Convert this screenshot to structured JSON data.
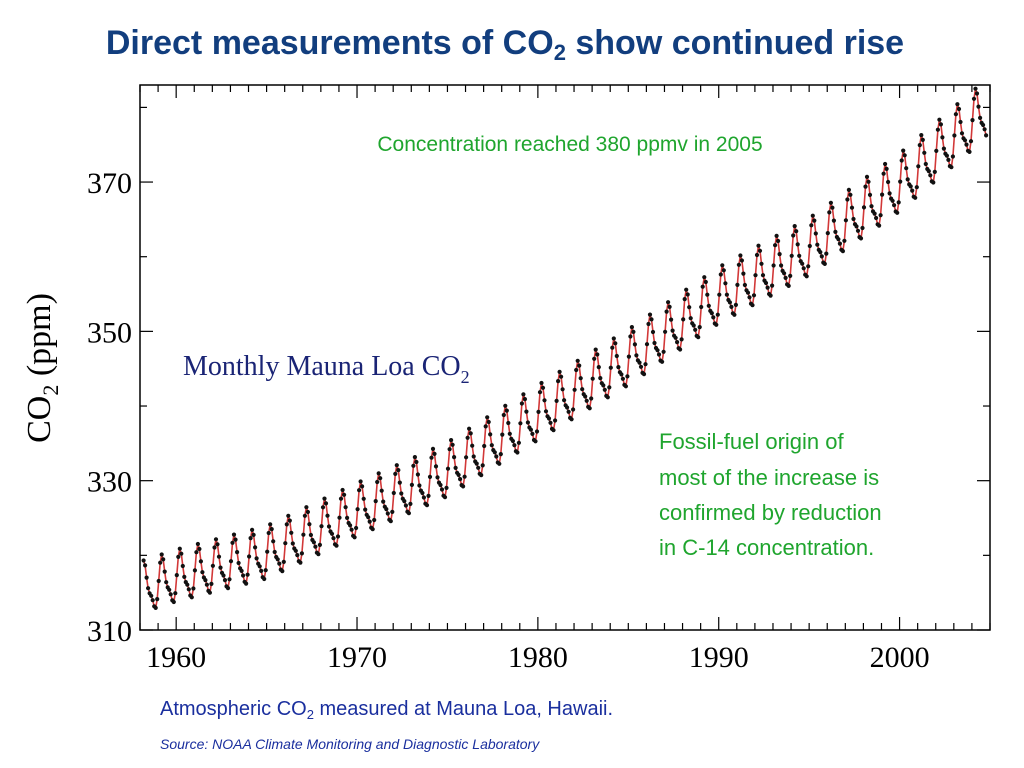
{
  "title": {
    "main": "Direct measurements of CO",
    "sub": "2",
    "rest": " show continued rise"
  },
  "caption": {
    "main": "Atmospheric CO",
    "sub": "2",
    "rest": " measured at Mauna Loa, Hawaii."
  },
  "source": "Source: NOAA Climate Monitoring and Diagnostic Laboratory",
  "colors": {
    "title": "#123e7e",
    "annotation": "#1fa52e",
    "caption": "#1a2f9e",
    "inset_title": "#1a2475",
    "line": "#d23838",
    "points": "#111111"
  },
  "chart_data": {
    "type": "line",
    "inset_title": {
      "main": "Monthly Mauna Loa CO",
      "sub": "2"
    },
    "ylabel": {
      "main": "CO",
      "sub": "2",
      "rest": " (ppm)"
    },
    "xlabel": "",
    "xlim": [
      1958,
      2005
    ],
    "ylim": [
      310,
      383
    ],
    "xticks": [
      1960,
      1970,
      1980,
      1990,
      2000
    ],
    "yticks": [
      310,
      330,
      350,
      370
    ],
    "grid": false,
    "annotations": [
      {
        "id": "reached",
        "text": "Concentration reached 380 ppmv in 2005"
      },
      {
        "id": "fossil",
        "lines": [
          "Fossil-fuel origin of",
          "most of the increase is",
          "confirmed by reduction",
          "in C-14 concentration."
        ]
      }
    ],
    "series": [
      {
        "unit": "ppm",
        "start_year": 1958.2,
        "months": 560,
        "annual_mean": [
          [
            1958,
            315.3
          ],
          [
            1960,
            316.9
          ],
          [
            1965,
            320.0
          ],
          [
            1970,
            325.7
          ],
          [
            1975,
            331.1
          ],
          [
            1980,
            338.7
          ],
          [
            1985,
            346.1
          ],
          [
            1990,
            354.4
          ],
          [
            1995,
            360.9
          ],
          [
            2000,
            369.5
          ],
          [
            2005,
            379.8
          ]
        ],
        "seasonal_amplitude": [
          [
            1958,
            3.0
          ],
          [
            2005,
            3.4
          ]
        ]
      }
    ]
  }
}
